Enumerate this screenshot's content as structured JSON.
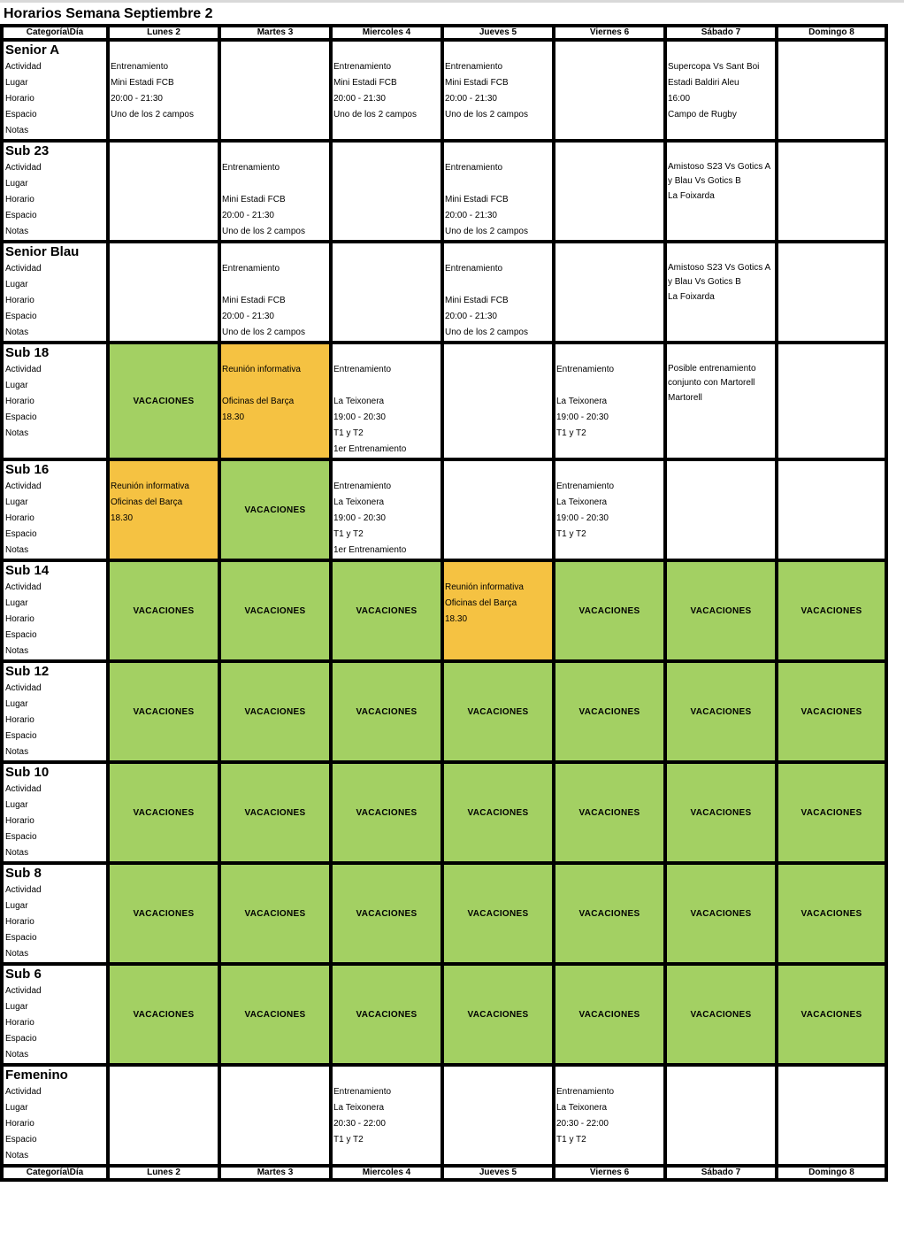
{
  "title": "Horarios Semana Septiembre 2",
  "header": [
    "Categoría\\Día",
    "Lunes 2",
    "Martes 3",
    "Miercoles 4",
    "Jueves 5",
    "Viernes 6",
    "Sábado 7",
    "Domingo 8"
  ],
  "row_labels": [
    "Actividad",
    "Lugar",
    "Horario",
    "Espacio",
    "Notas"
  ],
  "vacaciones_label": "VACACIONES",
  "colors": {
    "vacaciones": "#a3d063",
    "reunion": "#f5c242"
  },
  "categories": [
    {
      "name": "Senior A",
      "cells": [
        {
          "type": "text",
          "lines": [
            "Entrenamiento",
            "Mini Estadi FCB",
            "20:00 - 21:30",
            "Uno de los 2 campos"
          ]
        },
        {
          "type": "empty"
        },
        {
          "type": "text",
          "lines": [
            "Entrenamiento",
            "Mini Estadi FCB",
            "20:00 - 21:30",
            "Uno de los 2 campos"
          ]
        },
        {
          "type": "text",
          "lines": [
            "Entrenamiento",
            "Mini Estadi FCB",
            "20:00 - 21:30",
            "Uno de los 2 campos"
          ]
        },
        {
          "type": "empty"
        },
        {
          "type": "text",
          "lines": [
            "Supercopa Vs Sant Boi",
            "Estadi Baldiri Aleu",
            "16:00",
            "Campo de Rugby"
          ]
        },
        {
          "type": "empty"
        }
      ]
    },
    {
      "name": "Sub 23",
      "cells": [
        {
          "type": "empty"
        },
        {
          "type": "text",
          "lines": [
            "Entrenamiento",
            "",
            "Mini Estadi FCB",
            "20:00 - 21:30",
            "Uno de los 2 campos"
          ]
        },
        {
          "type": "empty"
        },
        {
          "type": "text",
          "lines": [
            "Entrenamiento",
            "",
            "Mini Estadi FCB",
            "20:00 - 21:30",
            "Uno de los 2 campos"
          ]
        },
        {
          "type": "empty"
        },
        {
          "type": "text",
          "wrap_first": true,
          "lines": [
            "Amistoso S23 Vs Gotics A y Blau Vs Gotics B",
            "La Foixarda"
          ]
        },
        {
          "type": "empty"
        }
      ]
    },
    {
      "name": "Senior Blau",
      "cells": [
        {
          "type": "empty"
        },
        {
          "type": "text",
          "lines": [
            "Entrenamiento",
            "",
            "Mini Estadi FCB",
            "20:00 - 21:30",
            "Uno de los 2 campos"
          ]
        },
        {
          "type": "empty"
        },
        {
          "type": "text",
          "lines": [
            "Entrenamiento",
            "",
            "Mini Estadi FCB",
            "20:00 - 21:30",
            "Uno de los 2 campos"
          ]
        },
        {
          "type": "empty"
        },
        {
          "type": "text",
          "wrap_first": true,
          "lines": [
            "Amistoso S23 Vs Gotics A y Blau Vs Gotics B",
            "La Foixarda"
          ]
        },
        {
          "type": "empty"
        }
      ]
    },
    {
      "name": "Sub 18",
      "cells": [
        {
          "type": "vac"
        },
        {
          "type": "orange",
          "lines": [
            "Reunión informativa",
            "",
            "Oficinas del Barça",
            "18.30"
          ]
        },
        {
          "type": "text",
          "lines": [
            "Entrenamiento",
            "",
            "La Teixonera",
            "19:00 - 20:30",
            "T1 y T2",
            "1er Entrenamiento"
          ]
        },
        {
          "type": "empty"
        },
        {
          "type": "text",
          "lines": [
            "Entrenamiento",
            "",
            "La Teixonera",
            "19:00 - 20:30",
            "T1 y T2"
          ]
        },
        {
          "type": "text",
          "wrap_first": true,
          "lines": [
            "Posible entrenamiento conjunto con Martorell",
            "Martorell"
          ]
        },
        {
          "type": "empty"
        }
      ]
    },
    {
      "name": "Sub 16",
      "cells": [
        {
          "type": "orange",
          "lines": [
            "Reunión informativa",
            "Oficinas del Barça",
            "18.30"
          ]
        },
        {
          "type": "vac"
        },
        {
          "type": "text",
          "lines": [
            "Entrenamiento",
            "La Teixonera",
            "19:00 - 20:30",
            "T1 y T2",
            "1er Entrenamiento"
          ]
        },
        {
          "type": "empty"
        },
        {
          "type": "text",
          "lines": [
            "Entrenamiento",
            "La Teixonera",
            "19:00 - 20:30",
            "T1 y T2"
          ]
        },
        {
          "type": "empty"
        },
        {
          "type": "empty"
        }
      ]
    },
    {
      "name": "Sub 14",
      "cells": [
        {
          "type": "vac"
        },
        {
          "type": "vac"
        },
        {
          "type": "vac"
        },
        {
          "type": "orange",
          "lines": [
            "Reunión informativa",
            "Oficinas del Barça",
            "18.30"
          ]
        },
        {
          "type": "vac"
        },
        {
          "type": "vac"
        },
        {
          "type": "vac"
        }
      ]
    },
    {
      "name": "Sub 12",
      "cells": [
        {
          "type": "vac"
        },
        {
          "type": "vac"
        },
        {
          "type": "vac"
        },
        {
          "type": "vac"
        },
        {
          "type": "vac"
        },
        {
          "type": "vac"
        },
        {
          "type": "vac"
        }
      ]
    },
    {
      "name": "Sub 10",
      "cells": [
        {
          "type": "vac"
        },
        {
          "type": "vac"
        },
        {
          "type": "vac"
        },
        {
          "type": "vac"
        },
        {
          "type": "vac"
        },
        {
          "type": "vac"
        },
        {
          "type": "vac"
        }
      ]
    },
    {
      "name": "Sub 8",
      "cells": [
        {
          "type": "vac"
        },
        {
          "type": "vac"
        },
        {
          "type": "vac"
        },
        {
          "type": "vac"
        },
        {
          "type": "vac"
        },
        {
          "type": "vac"
        },
        {
          "type": "vac"
        }
      ]
    },
    {
      "name": "Sub 6",
      "cells": [
        {
          "type": "vac"
        },
        {
          "type": "vac"
        },
        {
          "type": "vac"
        },
        {
          "type": "vac"
        },
        {
          "type": "vac"
        },
        {
          "type": "vac"
        },
        {
          "type": "vac"
        }
      ]
    },
    {
      "name": "Femenino",
      "cells": [
        {
          "type": "empty"
        },
        {
          "type": "empty"
        },
        {
          "type": "text",
          "lines": [
            "Entrenamiento",
            "La Teixonera",
            "20:30 - 22:00",
            "T1 y T2"
          ]
        },
        {
          "type": "empty"
        },
        {
          "type": "text",
          "lines": [
            "Entrenamiento",
            "La Teixonera",
            "20:30 - 22:00",
            "T1 y T2"
          ]
        },
        {
          "type": "empty"
        },
        {
          "type": "empty"
        }
      ]
    }
  ]
}
